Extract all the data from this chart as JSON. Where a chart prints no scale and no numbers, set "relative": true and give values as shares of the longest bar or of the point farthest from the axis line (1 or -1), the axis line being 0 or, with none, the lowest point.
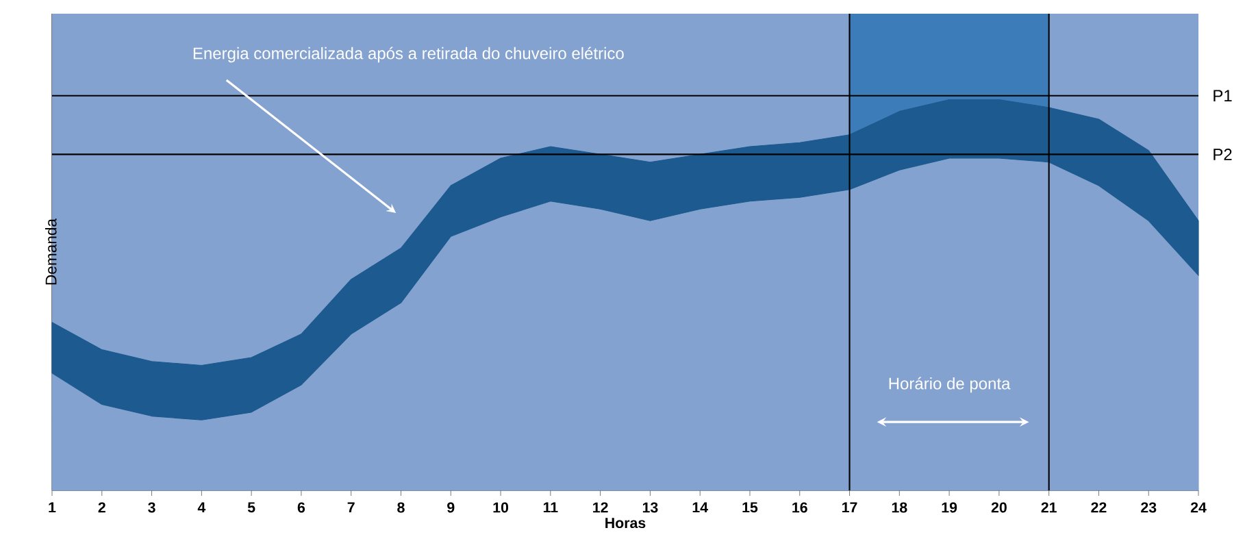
{
  "chart_data": {
    "type": "area",
    "relative": true,
    "stacked": true,
    "xlabel": "Horas",
    "ylabel": "Demanda",
    "categories": [
      "1",
      "2",
      "3",
      "4",
      "5",
      "6",
      "7",
      "8",
      "9",
      "10",
      "11",
      "12",
      "13",
      "14",
      "15",
      "16",
      "17",
      "18",
      "19",
      "20",
      "21",
      "22",
      "23",
      "24"
    ],
    "series": [
      {
        "color": "#84a2cf",
        "values": [
          0.3,
          0.22,
          0.19,
          0.18,
          0.2,
          0.27,
          0.4,
          0.48,
          0.65,
          0.7,
          0.74,
          0.72,
          0.69,
          0.72,
          0.74,
          0.75,
          0.77,
          0.82,
          0.85,
          0.85,
          0.84,
          0.78,
          0.69,
          0.55
        ]
      },
      {
        "color": "#1c5a8f",
        "values": [
          0.13,
          0.14,
          0.14,
          0.14,
          0.14,
          0.13,
          0.14,
          0.14,
          0.13,
          0.15,
          0.14,
          0.14,
          0.15,
          0.14,
          0.14,
          0.14,
          0.14,
          0.15,
          0.15,
          0.15,
          0.14,
          0.17,
          0.18,
          0.14
        ]
      }
    ],
    "bands": [
      {
        "axis": "x",
        "from": "1",
        "to": "24",
        "color": "#84a2cf"
      },
      {
        "axis": "x",
        "from": "17",
        "to": "21",
        "label": "Horário de ponta",
        "color": "#3c7cb9"
      }
    ],
    "ref_lines": [
      {
        "axis": "y",
        "value": 1.01,
        "label": "P1",
        "color": "#000000"
      },
      {
        "axis": "y",
        "value": 0.86,
        "label": "P2",
        "color": "#000000"
      }
    ],
    "annotations": [
      "Energia comercializada após a retirada do chuveiro elétrico"
    ]
  }
}
